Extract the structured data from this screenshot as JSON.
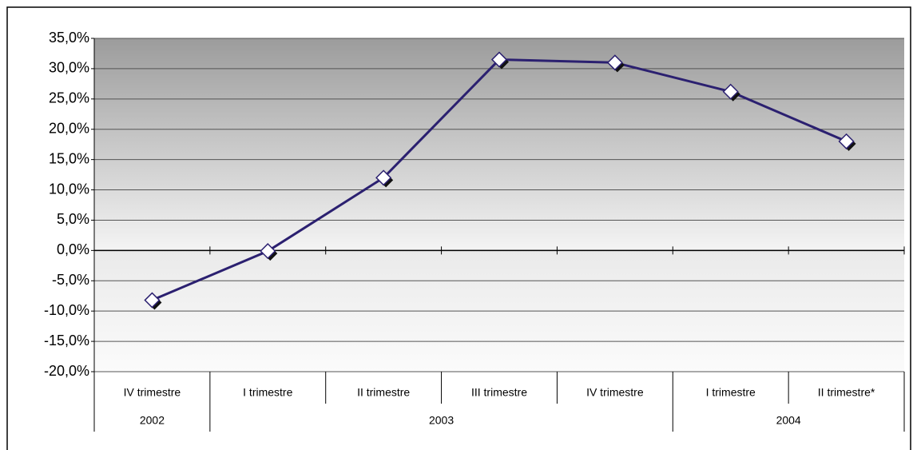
{
  "chart_data": {
    "type": "line",
    "categories": [
      "IV trimestre",
      "I trimestre",
      "II trimestre",
      "III trimestre",
      "IV trimestre",
      "I trimestre",
      "II trimestre*"
    ],
    "groups": [
      {
        "label": "2002",
        "span": 1
      },
      {
        "label": "2003",
        "span": 4
      },
      {
        "label": "2004",
        "span": 2
      }
    ],
    "series": [
      {
        "color": "#2b2070",
        "values": [
          -8.2,
          -0.1,
          12.0,
          31.5,
          31.0,
          26.2,
          18.0
        ]
      }
    ],
    "ylim": [
      -20,
      35
    ],
    "yticks": [
      {
        "value": -20,
        "label": "-20,0%"
      },
      {
        "value": -15,
        "label": "-15,0%"
      },
      {
        "value": -10,
        "label": "-10,0%"
      },
      {
        "value": -5,
        "label": "-5,0%"
      },
      {
        "value": 0,
        "label": "0,0%"
      },
      {
        "value": 5,
        "label": "5,0%"
      },
      {
        "value": 10,
        "label": "10,0%"
      },
      {
        "value": 15,
        "label": "15,0%"
      },
      {
        "value": 20,
        "label": "20,0%"
      },
      {
        "value": 25,
        "label": "25,0%"
      },
      {
        "value": 30,
        "label": "30,0%"
      },
      {
        "value": 35,
        "label": "35,0%"
      }
    ],
    "grid": true
  }
}
